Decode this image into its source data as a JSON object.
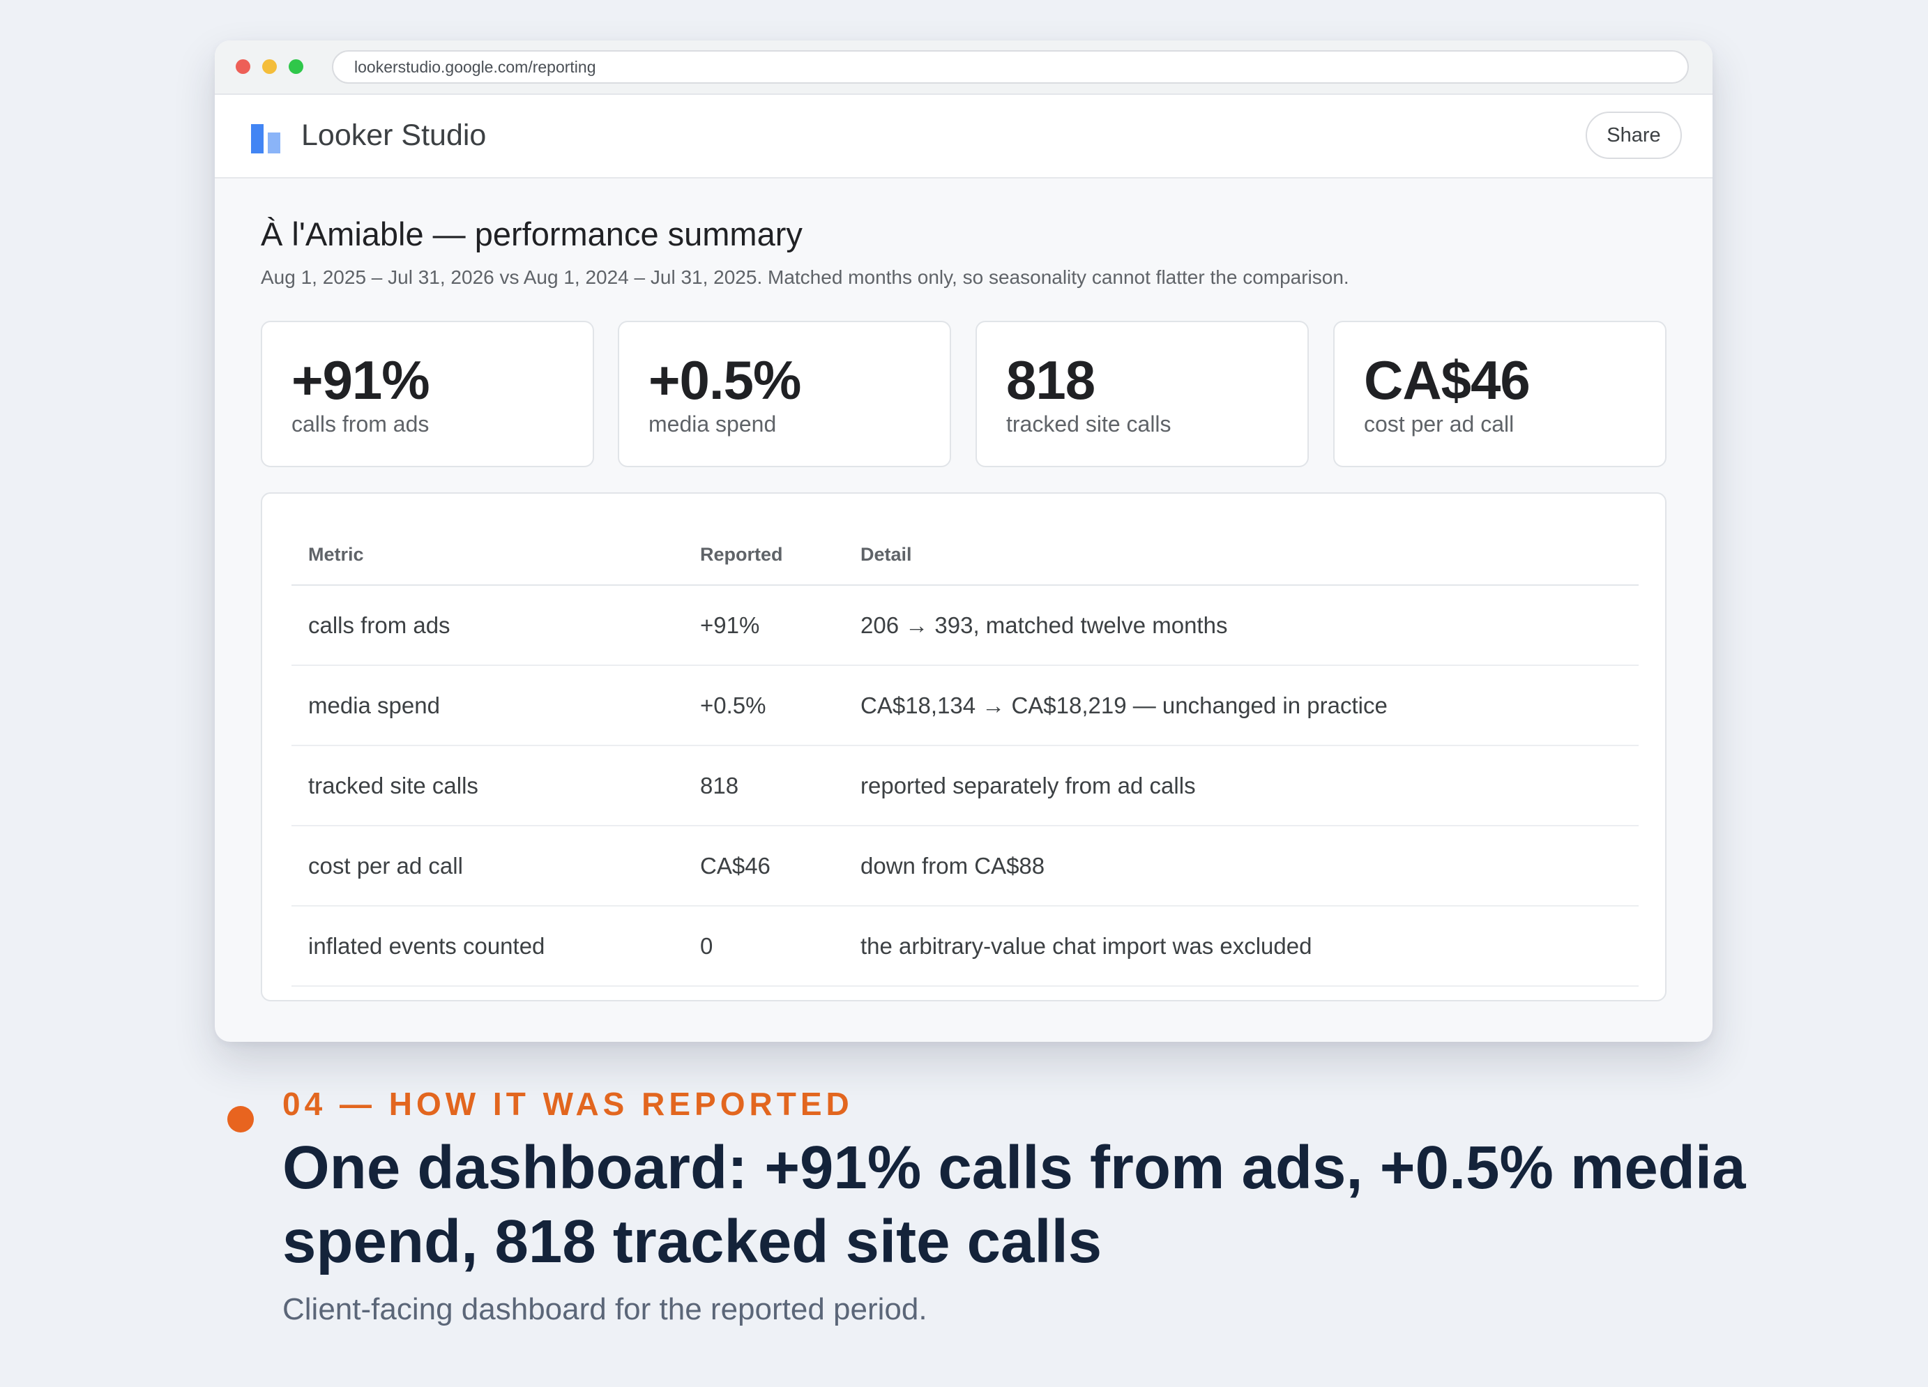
{
  "browser": {
    "url": "lookerstudio.google.com/reporting"
  },
  "app": {
    "name": "Looker Studio",
    "share_label": "Share"
  },
  "report": {
    "title": "À l'Amiable — performance summary",
    "subtitle": "Aug 1, 2025 – Jul 31, 2026 vs Aug 1, 2024 – Jul 31, 2025. Matched months only, so seasonality cannot flatter the comparison."
  },
  "kpis": [
    {
      "value": "+91%",
      "label": "calls from ads"
    },
    {
      "value": "+0.5%",
      "label": "media spend"
    },
    {
      "value": "818",
      "label": "tracked site calls"
    },
    {
      "value": "CA$46",
      "label": "cost per ad call"
    }
  ],
  "table": {
    "headers": [
      "Metric",
      "Reported",
      "Detail"
    ],
    "rows": [
      {
        "metric": "calls from ads",
        "reported": "+91%",
        "detail": "206 → 393, matched twelve months"
      },
      {
        "metric": "media spend",
        "reported": "+0.5%",
        "detail": "CA$18,134 → CA$18,219 — unchanged in practice"
      },
      {
        "metric": "tracked site calls",
        "reported": "818",
        "detail": "reported separately from ad calls"
      },
      {
        "metric": "cost per ad call",
        "reported": "CA$46",
        "detail": "down from CA$88"
      },
      {
        "metric": "inflated events counted",
        "reported": "0",
        "detail": "the arbitrary-value chat import was excluded"
      }
    ]
  },
  "caption": {
    "eyebrow": "04 — HOW IT WAS REPORTED",
    "headline": "One dashboard: +91% calls from ads, +0.5% media spend, 818 tracked site calls",
    "text": "Client-facing dashboard for the reported period."
  },
  "colors": {
    "accent": "#e2661f",
    "headline": "#14233a",
    "logo_primary": "#4285f4",
    "logo_secondary": "#8ab4f8"
  }
}
